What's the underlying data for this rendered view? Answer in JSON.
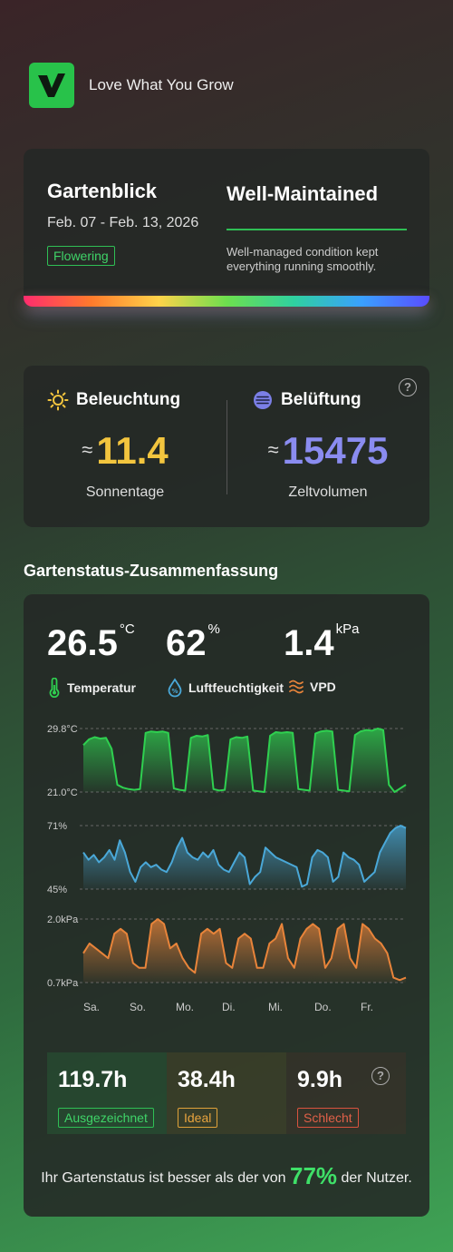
{
  "brand": {
    "tagline": "Love What You Grow",
    "icon": "v-logo-icon",
    "color": "#28c24a"
  },
  "overview": {
    "title": "Gartenblick",
    "date_range": "Feb. 07 - Feb. 13, 2026",
    "stage_badge": "Flowering",
    "status": "Well-Maintained",
    "description": "Well-managed condition kept everything running smoothly."
  },
  "environment": {
    "light": {
      "label": "Beleuchtung",
      "approx": "≈",
      "value": "11.4",
      "unit": "Sonnentage",
      "color": "#f3c53e",
      "icon": "sun-icon"
    },
    "ventilation": {
      "label": "Belüftung",
      "approx": "≈",
      "value": "15475",
      "unit": "Zeltvolumen",
      "color": "#8a8cf0",
      "icon": "ventilation-icon"
    },
    "help": "?"
  },
  "summary": {
    "section_title": "Gartenstatus-Zusammenfassung",
    "temperature": {
      "value": "26.5",
      "unit": "°C",
      "label": "Temperatur"
    },
    "humidity": {
      "value": "62",
      "unit": "%",
      "label": "Luftfeuchtigkeit"
    },
    "vpd": {
      "value": "1.4",
      "unit": "kPa",
      "label": "VPD"
    },
    "stats": [
      {
        "value": "119.7h",
        "label": "Ausgezeichnet",
        "color": "#2fbf55"
      },
      {
        "value": "38.4h",
        "label": "Ideal",
        "color": "#e0a23a"
      },
      {
        "value": "9.9h",
        "label": "Schlecht",
        "color": "#d9533f"
      }
    ],
    "help": "?",
    "footer_prefix": "Ihr Gartenstatus ist besser als der von ",
    "footer_percent": "77%",
    "footer_suffix": " der Nutzer."
  },
  "chart_data": [
    {
      "type": "area",
      "name": "temperature",
      "ylabels": [
        "29.8°C",
        "21.0°C"
      ],
      "ylim": [
        21.0,
        29.8
      ],
      "color": "#2fd050",
      "x_labels": [
        "Sa.",
        "So.",
        "Mo.",
        "Di.",
        "Mi.",
        "Do.",
        "Fr."
      ],
      "values": [
        27.5,
        28.3,
        28.6,
        28.4,
        28.5,
        27.0,
        22.0,
        21.6,
        21.4,
        21.3,
        21.4,
        29.2,
        29.4,
        29.3,
        29.4,
        29.2,
        21.5,
        21.3,
        21.2,
        28.5,
        28.8,
        28.7,
        28.9,
        21.4,
        21.2,
        21.3,
        28.3,
        28.6,
        28.5,
        28.7,
        21.2,
        21.1,
        21.0,
        28.8,
        29.3,
        29.2,
        29.3,
        29.2,
        21.4,
        21.3,
        21.2,
        29.1,
        29.4,
        29.5,
        29.4,
        21.3,
        21.2,
        21.1,
        28.9,
        29.4,
        29.6,
        29.5,
        29.8,
        29.6,
        22.0,
        21.0,
        21.5,
        22.0
      ]
    },
    {
      "type": "area",
      "name": "humidity",
      "ylabels": [
        "71%",
        "45%"
      ],
      "ylim": [
        45,
        71
      ],
      "color": "#4aa8d8",
      "values": [
        60,
        57,
        59,
        56,
        58,
        61,
        57,
        65,
        60,
        52,
        48,
        54,
        56,
        54,
        55,
        53,
        52,
        56,
        62,
        66,
        60,
        58,
        57,
        60,
        58,
        61,
        55,
        53,
        52,
        56,
        60,
        58,
        47,
        50,
        52,
        62,
        60,
        58,
        57,
        56,
        55,
        54,
        46,
        47,
        58,
        61,
        60,
        58,
        48,
        50,
        60,
        58,
        57,
        55,
        48,
        50,
        52,
        60,
        64,
        68,
        70,
        71,
        70
      ]
    },
    {
      "type": "area",
      "name": "vpd",
      "ylabels": [
        "2.0kPa",
        "0.7kPa"
      ],
      "ylim": [
        0.7,
        2.0
      ],
      "color": "#e8843a",
      "values": [
        1.3,
        1.5,
        1.4,
        1.3,
        1.2,
        1.7,
        1.8,
        1.7,
        1.1,
        1.0,
        1.0,
        1.9,
        2.0,
        1.9,
        1.4,
        1.5,
        1.2,
        1.0,
        0.9,
        1.7,
        1.8,
        1.7,
        1.8,
        1.1,
        1.0,
        1.6,
        1.7,
        1.6,
        1.0,
        1.0,
        1.5,
        1.6,
        1.9,
        1.2,
        1.0,
        1.6,
        1.8,
        1.9,
        1.8,
        1.0,
        1.2,
        1.8,
        1.9,
        1.2,
        1.0,
        1.9,
        1.8,
        1.6,
        1.5,
        1.3,
        0.8,
        0.75,
        0.8
      ]
    }
  ]
}
